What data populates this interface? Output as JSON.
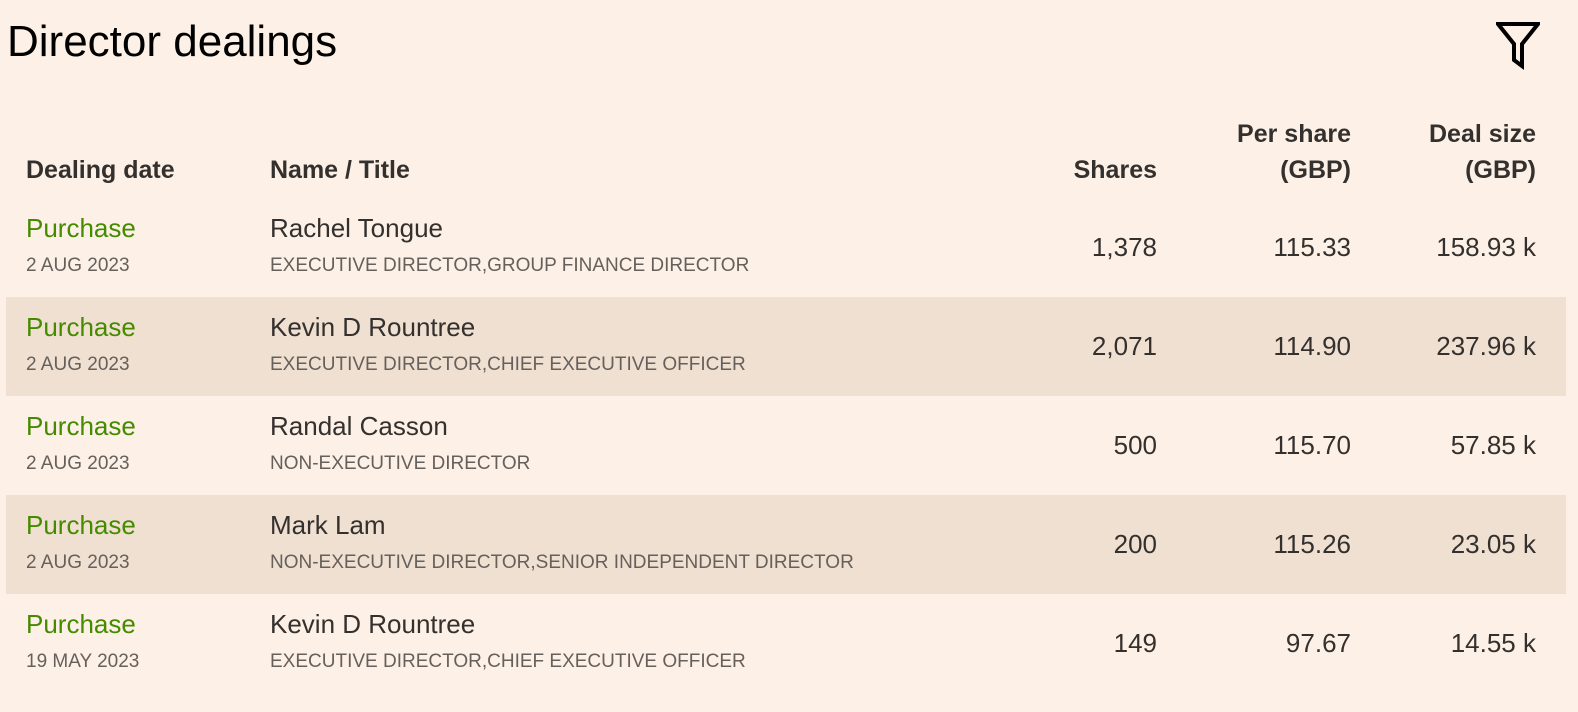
{
  "title": "Director dealings",
  "filter_icon": "filter-funnel-icon",
  "colors": {
    "background": "#fdf0e6",
    "alt_row": "#f0e0d1",
    "purchase": "#458b00"
  },
  "columns": {
    "date": "Dealing date",
    "name": "Name / Title",
    "shares": "Shares",
    "per_share_line1": "Per share",
    "per_share_line2": "(GBP)",
    "deal_size_line1": "Deal size",
    "deal_size_line2": "(GBP)"
  },
  "rows": [
    {
      "type": "Purchase",
      "date": "2 AUG 2023",
      "name": "Rachel Tongue",
      "title": "EXECUTIVE DIRECTOR,GROUP FINANCE DIRECTOR",
      "shares": "1,378",
      "per_share": "115.33",
      "deal_size": "158.93 k"
    },
    {
      "type": "Purchase",
      "date": "2 AUG 2023",
      "name": "Kevin D Rountree",
      "title": "EXECUTIVE DIRECTOR,CHIEF EXECUTIVE OFFICER",
      "shares": "2,071",
      "per_share": "114.90",
      "deal_size": "237.96 k"
    },
    {
      "type": "Purchase",
      "date": "2 AUG 2023",
      "name": "Randal Casson",
      "title": "NON-EXECUTIVE DIRECTOR",
      "shares": "500",
      "per_share": "115.70",
      "deal_size": "57.85 k"
    },
    {
      "type": "Purchase",
      "date": "2 AUG 2023",
      "name": "Mark Lam",
      "title": "NON-EXECUTIVE DIRECTOR,SENIOR INDEPENDENT DIRECTOR",
      "shares": "200",
      "per_share": "115.26",
      "deal_size": "23.05 k"
    },
    {
      "type": "Purchase",
      "date": "19 MAY 2023",
      "name": "Kevin D Rountree",
      "title": "EXECUTIVE DIRECTOR,CHIEF EXECUTIVE OFFICER",
      "shares": "149",
      "per_share": "97.67",
      "deal_size": "14.55 k"
    }
  ]
}
